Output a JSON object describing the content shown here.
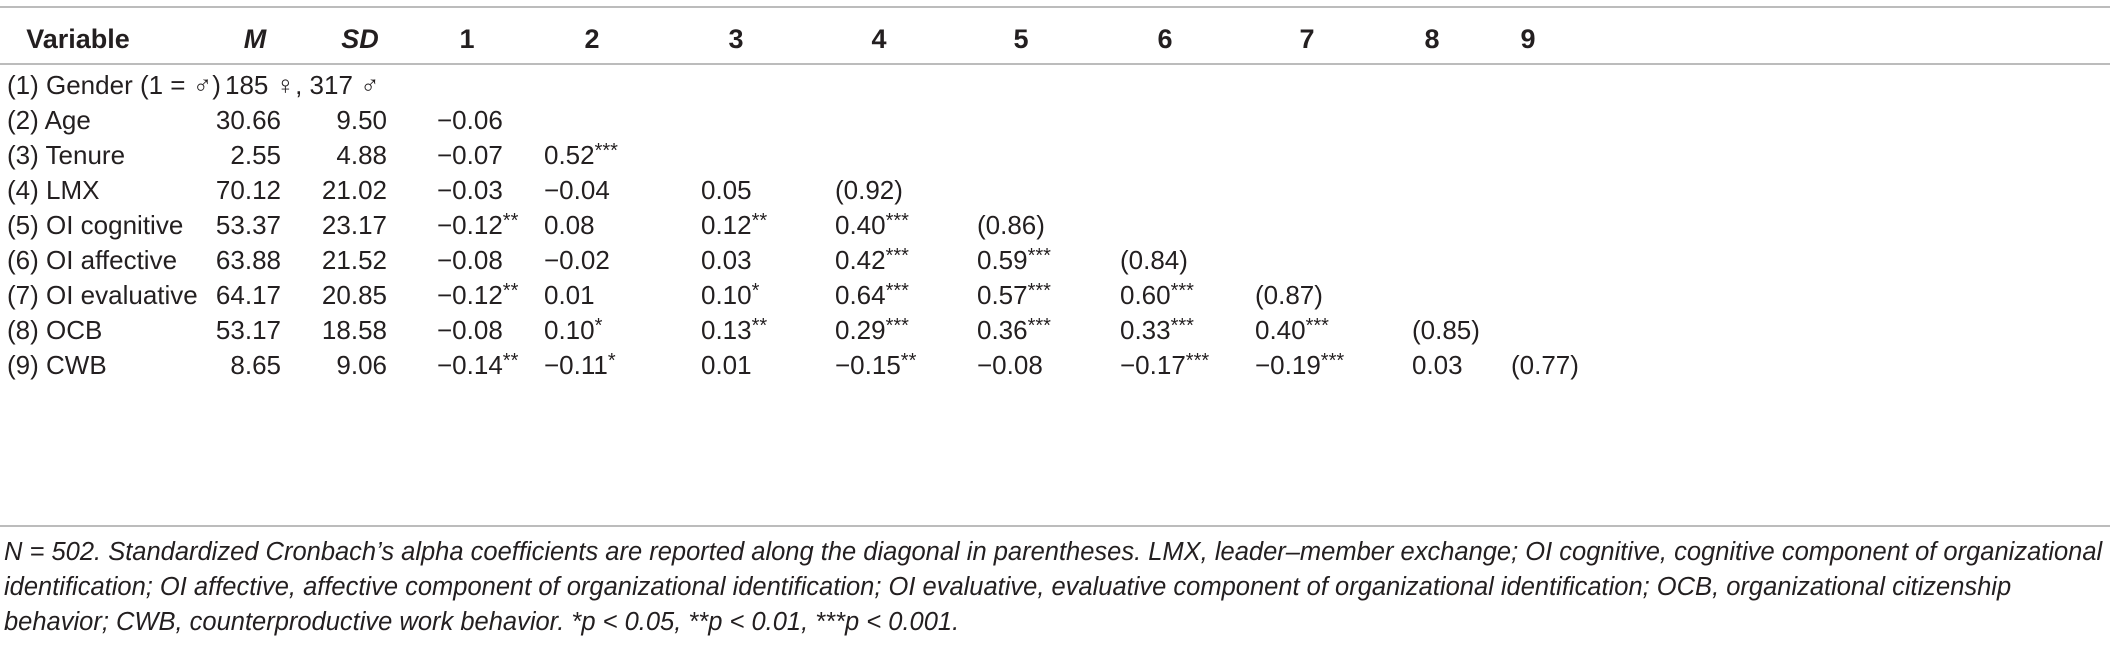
{
  "table": {
    "headers": [
      "Variable",
      "M",
      "SD",
      "1",
      "2",
      "3",
      "4",
      "5",
      "6",
      "7",
      "8",
      "9"
    ],
    "rows": [
      {
        "label": "(1) Gender (1 = ♂)",
        "M": "185 ♀, 317 ♂",
        "SD": "",
        "cells": [
          "",
          "",
          "",
          "",
          "",
          "",
          "",
          "",
          ""
        ]
      },
      {
        "label": "(2) Age",
        "M": "30.66",
        "SD": "9.50",
        "cells": [
          "−0.06",
          "",
          "",
          "",
          "",
          "",
          "",
          "",
          ""
        ]
      },
      {
        "label": "(3) Tenure",
        "M": "2.55",
        "SD": "4.88",
        "cells": [
          "−0.07",
          "0.52***",
          "",
          "",
          "",
          "",
          "",
          "",
          ""
        ]
      },
      {
        "label": "(4) LMX",
        "M": "70.12",
        "SD": "21.02",
        "cells": [
          "−0.03",
          "−0.04",
          "0.05",
          "(0.92)",
          "",
          "",
          "",
          "",
          ""
        ]
      },
      {
        "label": "(5) OI cognitive",
        "M": "53.37",
        "SD": "23.17",
        "cells": [
          "−0.12**",
          "0.08",
          "0.12**",
          "0.40***",
          "(0.86)",
          "",
          "",
          "",
          ""
        ]
      },
      {
        "label": "(6) OI affective",
        "M": "63.88",
        "SD": "21.52",
        "cells": [
          "−0.08",
          "−0.02",
          "0.03",
          "0.42***",
          "0.59***",
          "(0.84)",
          "",
          "",
          ""
        ]
      },
      {
        "label": "(7) OI evaluative",
        "M": "64.17",
        "SD": "20.85",
        "cells": [
          "−0.12**",
          "0.01",
          "0.10*",
          "0.64***",
          "0.57***",
          "0.60***",
          "(0.87)",
          "",
          ""
        ]
      },
      {
        "label": "(8) OCB",
        "M": "53.17",
        "SD": "18.58",
        "cells": [
          "−0.08",
          "0.10*",
          "0.13**",
          "0.29***",
          "0.36***",
          "0.33***",
          "0.40***",
          "(0.85)",
          ""
        ]
      },
      {
        "label": "(9) CWB",
        "M": "8.65",
        "SD": "9.06",
        "cells": [
          "−0.14**",
          "−0.11*",
          "0.01",
          "−0.15**",
          "−0.08",
          "−0.17***",
          "−0.19***",
          "0.03",
          "(0.77)"
        ]
      }
    ]
  },
  "note": "N = 502. Standardized Cronbach’s alpha coefficients are reported along the diagonal in parentheses. LMX, leader–member exchange; OI cognitive, cognitive component of organizational identification; OI affective, affective component of organizational identification; OI evaluative, evaluative component of organizational identification; OCB, organizational citizenship behavior; CWB, counterproductive work behavior. *p < 0.05, **p < 0.01, ***p < 0.001."
}
